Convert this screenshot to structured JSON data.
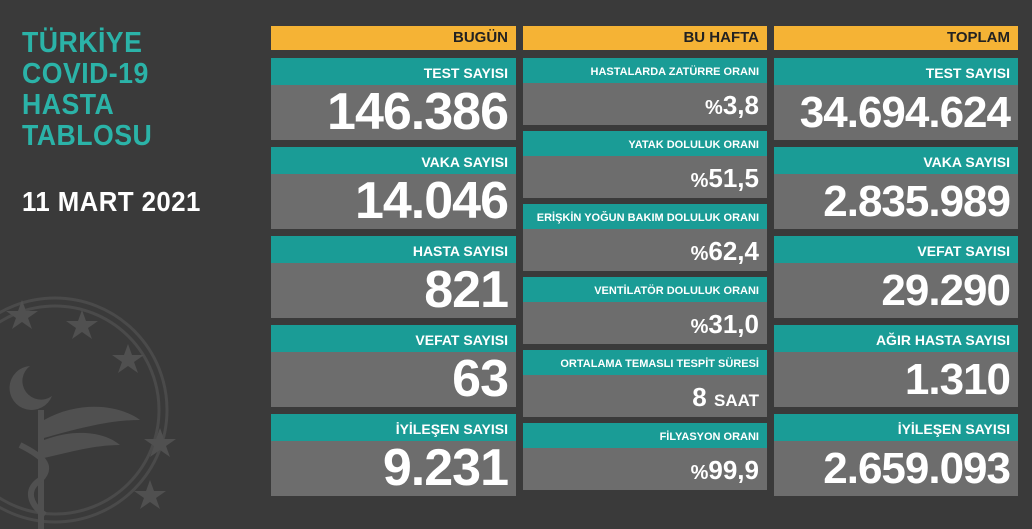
{
  "title": [
    "TÜRKİYE",
    "COVID-19",
    "HASTA",
    "TABLOSU"
  ],
  "date": "11 MART 2021",
  "today": {
    "header": "BUGÜN",
    "cards": [
      {
        "label": "TEST SAYISI",
        "value": "146.386"
      },
      {
        "label": "VAKA SAYISI",
        "value": "14.046"
      },
      {
        "label": "HASTA SAYISI",
        "value": "821"
      },
      {
        "label": "VEFAT SAYISI",
        "value": "63"
      },
      {
        "label": "İYİLEŞEN SAYISI",
        "value": "9.231"
      }
    ]
  },
  "week": {
    "header": "BU HAFTA",
    "cards": [
      {
        "label": "HASTALARDA ZATÜRRE ORANI",
        "prefix": "%",
        "value": "3,8",
        "suffix": ""
      },
      {
        "label": "YATAK DOLULUK ORANI",
        "prefix": "%",
        "value": "51,5",
        "suffix": ""
      },
      {
        "label": "ERİŞKİN YOĞUN BAKIM DOLULUK ORANI",
        "prefix": "%",
        "value": "62,4",
        "suffix": ""
      },
      {
        "label": "VENTİLATÖR DOLULUK ORANI",
        "prefix": "%",
        "value": "31,0",
        "suffix": ""
      },
      {
        "label": "ORTALAMA TEMASLI TESPİT SÜRESİ",
        "prefix": "",
        "value": "8",
        "suffix": "SAAT"
      },
      {
        "label": "FİLYASYON ORANI",
        "prefix": "%",
        "value": "99,9",
        "suffix": ""
      }
    ]
  },
  "total": {
    "header": "TOPLAM",
    "cards": [
      {
        "label": "TEST SAYISI",
        "value": "34.694.624"
      },
      {
        "label": "VAKA SAYISI",
        "value": "2.835.989"
      },
      {
        "label": "VEFAT SAYISI",
        "value": "29.290"
      },
      {
        "label": "AĞIR HASTA SAYISI",
        "value": "1.310"
      },
      {
        "label": "İYİLEŞEN SAYISI",
        "value": "2.659.093"
      }
    ]
  },
  "colors": {
    "background": "#3a3a3a",
    "title": "#2bb3a8",
    "header": "#f5b335",
    "label": "#1a9c96",
    "value_box": "#6d6d6d"
  },
  "icons": {
    "emblem": "ministry-of-health-emblem"
  }
}
